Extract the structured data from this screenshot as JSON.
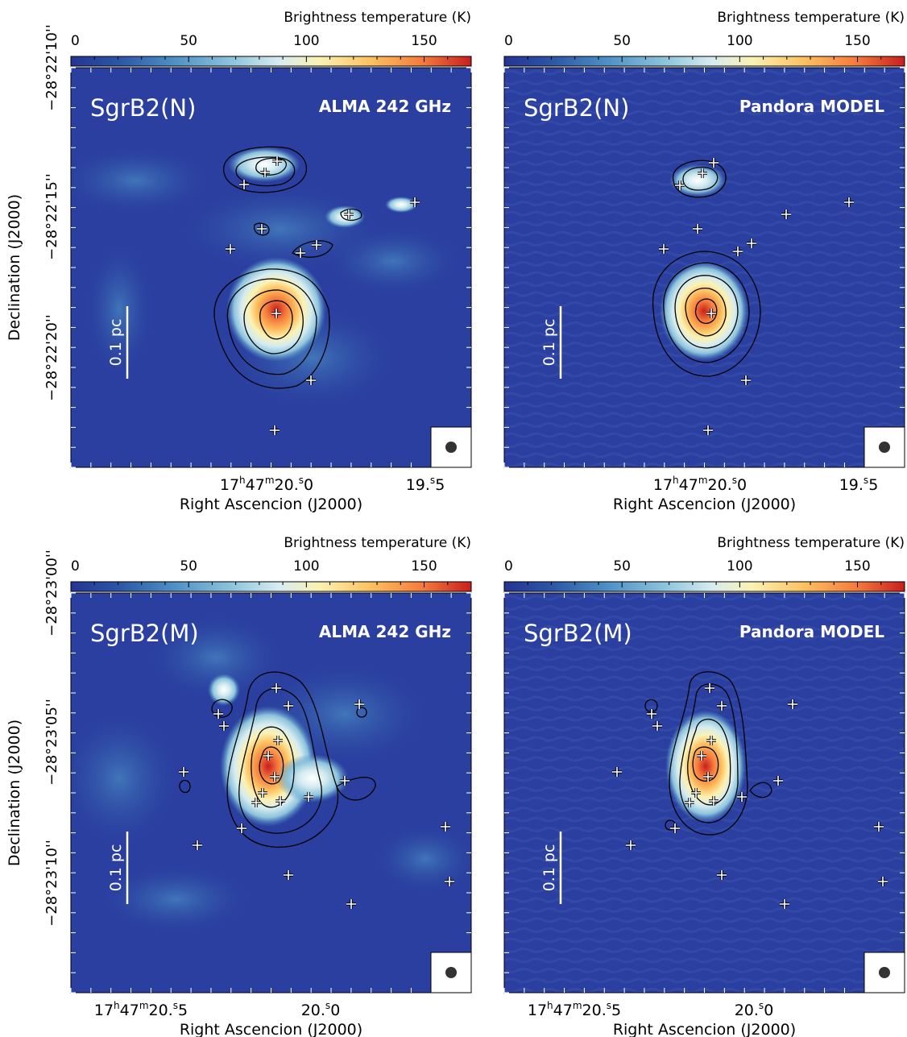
{
  "colorbar_title": "Brightness temperature (K)",
  "colorbar_ticks": [
    "0",
    "50",
    "100",
    "150"
  ],
  "ylabel": "Declination (J2000)",
  "xlabel": "Right Ascencion (J2000)",
  "scalebar": "0.1 pc",
  "colors": {
    "background": "#2b3fa0",
    "cmap": [
      "#253494",
      "#2c56a6",
      "#4b8dc4",
      "#8cc3dc",
      "#d6ecf0",
      "#fbf2b2",
      "#fcc060",
      "#f57a3c",
      "#c81e1e"
    ]
  },
  "panels": [
    {
      "source": "SgrB2(N)",
      "tag": "ALMA 242 GHz",
      "ra_ticks": [
        "17h47m20.0s",
        "19.5s"
      ],
      "dec_ticks": [
        "−28°22'10''",
        "−28°22'15''",
        "−28°22'20''"
      ]
    },
    {
      "source": "SgrB2(N)",
      "tag": "Pandora MODEL",
      "ra_ticks": [
        "17h47m20.0s",
        "19.5s"
      ],
      "dec_ticks": []
    },
    {
      "source": "SgrB2(M)",
      "tag": "ALMA 242 GHz",
      "ra_ticks": [
        "17h47m20.5s",
        "20.0s"
      ],
      "dec_ticks": [
        "−28°23'00''",
        "−28°23'05''",
        "−28°23'10''"
      ]
    },
    {
      "source": "SgrB2(M)",
      "tag": "Pandora MODEL",
      "ra_ticks": [
        "17h47m20.5s",
        "20.0s"
      ],
      "dec_ticks": []
    }
  ],
  "chart_data": {
    "type": "heatmap",
    "title": "",
    "colorbar": {
      "label": "Brightness temperature (K)",
      "range": [
        0,
        170
      ],
      "ticks": [
        0,
        50,
        100,
        150
      ]
    },
    "xlabel": "Right Ascencion (J2000)",
    "ylabel": "Declination (J2000)",
    "panels": [
      {
        "name": "SgrB2(N) ALMA 242 GHz",
        "ra_ticks": [
          "17h47m20.0s",
          "19.5s"
        ],
        "dec_ticks": [
          "−28°22'10''",
          "−28°22'15''",
          "−28°22'20''"
        ],
        "peak_K": 170
      },
      {
        "name": "SgrB2(N) Pandora MODEL",
        "ra_ticks": [
          "17h47m20.0s",
          "19.5s"
        ],
        "peak_K": 130
      },
      {
        "name": "SgrB2(M) ALMA 242 GHz",
        "ra_ticks": [
          "17h47m20.5s",
          "20.0s"
        ],
        "dec_ticks": [
          "−28°23'00''",
          "−28°23'05''",
          "−28°23'10''"
        ],
        "peak_K": 170
      },
      {
        "name": "SgrB2(M) Pandora MODEL",
        "ra_ticks": [
          "17h47m20.5s",
          "20.0s"
        ],
        "peak_K": 170
      }
    ],
    "grid": false
  }
}
